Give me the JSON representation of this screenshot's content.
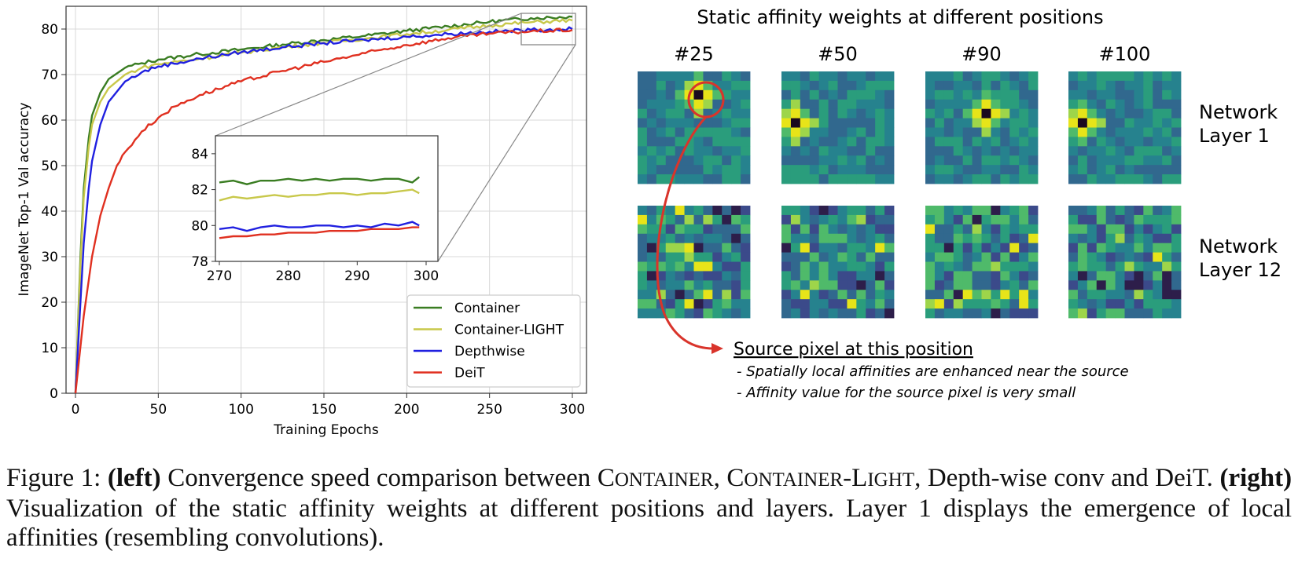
{
  "chart_data": [
    {
      "type": "line",
      "title": "",
      "xlabel": "Training Epochs",
      "ylabel": "ImageNet Top-1 Val accuracy",
      "xlim": [
        0,
        300
      ],
      "ylim": [
        0,
        85
      ],
      "xticks": [
        "0",
        "50",
        "100",
        "150",
        "200",
        "250",
        "300"
      ],
      "yticks": [
        "0",
        "10",
        "20",
        "30",
        "40",
        "50",
        "60",
        "70",
        "80"
      ],
      "grid": true,
      "legend_position": "bottom-right",
      "series": [
        {
          "name": "Container",
          "color": "#3a7d22",
          "x": [
            0,
            3,
            5,
            8,
            10,
            15,
            20,
            30,
            40,
            50,
            75,
            100,
            125,
            150,
            175,
            200,
            225,
            250,
            275,
            300
          ],
          "values": [
            0,
            30,
            45,
            56,
            61,
            66,
            69,
            71.5,
            72.5,
            73.3,
            74.5,
            75.5,
            76.6,
            77.6,
            78.5,
            79.6,
            80.6,
            81.6,
            82.4,
            82.7
          ]
        },
        {
          "name": "Container-LIGHT",
          "color": "#c8c84a",
          "x": [
            0,
            3,
            5,
            8,
            10,
            15,
            20,
            30,
            40,
            50,
            75,
            100,
            125,
            150,
            175,
            200,
            225,
            250,
            275,
            300
          ],
          "values": [
            0,
            28,
            43,
            54,
            59,
            64,
            67,
            70,
            71.5,
            72.3,
            73.5,
            74.8,
            76,
            77,
            77.9,
            78.9,
            79.8,
            80.8,
            81.5,
            81.9
          ]
        },
        {
          "name": "Depthwise",
          "color": "#2020e0",
          "x": [
            0,
            3,
            5,
            8,
            10,
            15,
            20,
            30,
            40,
            50,
            75,
            100,
            125,
            150,
            175,
            200,
            225,
            250,
            275,
            300
          ],
          "values": [
            0,
            20,
            33,
            45,
            51,
            59,
            64,
            68.5,
            70.5,
            71.8,
            73.5,
            74.9,
            76,
            76.9,
            77.6,
            78.3,
            78.9,
            79.4,
            79.8,
            80.0
          ]
        },
        {
          "name": "DeiT",
          "color": "#e03020",
          "x": [
            0,
            5,
            10,
            15,
            20,
            25,
            30,
            40,
            50,
            60,
            75,
            100,
            125,
            150,
            175,
            200,
            225,
            250,
            275,
            300
          ],
          "values": [
            0,
            17,
            30,
            39,
            45,
            50,
            53,
            57.5,
            60.5,
            63,
            65.5,
            68.5,
            70.8,
            72.8,
            74.7,
            76.5,
            78,
            79,
            79.5,
            79.8
          ]
        }
      ]
    },
    {
      "type": "line",
      "title": "",
      "xlim": [
        270,
        300
      ],
      "ylim": [
        78,
        85
      ],
      "xticks": [
        "270",
        "280",
        "290",
        "300"
      ],
      "yticks": [
        "78",
        "80",
        "82",
        "84"
      ],
      "series": [
        {
          "name": "Container",
          "color": "#3a7d22",
          "x": [
            270,
            272,
            274,
            276,
            278,
            280,
            282,
            284,
            286,
            288,
            290,
            292,
            294,
            296,
            298,
            299
          ],
          "values": [
            82.4,
            82.5,
            82.3,
            82.5,
            82.5,
            82.6,
            82.5,
            82.6,
            82.5,
            82.6,
            82.6,
            82.5,
            82.6,
            82.6,
            82.4,
            82.7
          ]
        },
        {
          "name": "Container-LIGHT",
          "color": "#c8c84a",
          "x": [
            270,
            272,
            274,
            276,
            278,
            280,
            282,
            284,
            286,
            288,
            290,
            292,
            294,
            296,
            298,
            299
          ],
          "values": [
            81.4,
            81.6,
            81.5,
            81.6,
            81.7,
            81.6,
            81.7,
            81.7,
            81.8,
            81.8,
            81.7,
            81.8,
            81.8,
            81.9,
            82.0,
            81.8
          ]
        },
        {
          "name": "Depthwise",
          "color": "#2020e0",
          "x": [
            270,
            272,
            274,
            276,
            278,
            280,
            282,
            284,
            286,
            288,
            290,
            292,
            294,
            296,
            298,
            299
          ],
          "values": [
            79.8,
            79.9,
            79.7,
            79.9,
            80.0,
            79.9,
            79.9,
            80.0,
            80.0,
            79.9,
            80.0,
            79.9,
            80.1,
            80.0,
            80.2,
            80.0
          ]
        },
        {
          "name": "DeiT",
          "color": "#e03020",
          "x": [
            270,
            272,
            274,
            276,
            278,
            280,
            282,
            284,
            286,
            288,
            290,
            292,
            294,
            296,
            298,
            299
          ],
          "values": [
            79.3,
            79.4,
            79.4,
            79.5,
            79.5,
            79.6,
            79.6,
            79.6,
            79.7,
            79.7,
            79.7,
            79.8,
            79.8,
            79.8,
            79.9,
            79.9
          ]
        }
      ]
    }
  ],
  "affinity": {
    "title": "Static affinity weights at different positions",
    "positions": [
      "#25",
      "#50",
      "#90",
      "#100"
    ],
    "row_labels": [
      [
        "Network",
        "Layer 1"
      ],
      [
        "Network",
        "Layer 12"
      ]
    ],
    "annotation_title": "Source pixel at this position",
    "annotation_lines": [
      "- Spatially local affinities are enhanced near the source",
      "- Affinity value for the source  pixel is very small"
    ],
    "palette": [
      "#2d1e4a",
      "#3b4a8a",
      "#31688e",
      "#26828e",
      "#2a9d7c",
      "#4fba6a",
      "#9ed54a",
      "#e7e419"
    ],
    "highlight_color": "#d9342b"
  },
  "caption": {
    "figure_label": "Figure 1:",
    "left_label": "(left)",
    "text1": "Convergence speed comparison between",
    "c1": "C",
    "c1_rest": "ONTAINER",
    "c2": "C",
    "c2_rest": "ONTAINER",
    "c2_dash": "-",
    "c2b": "L",
    "c2b_rest": "IGHT",
    "text2": ", Depth-wise conv and DeiT.",
    "right_label": "(right)",
    "text3": "Visualization of the static affinity weights at different positions and layers. Layer 1 displays the emergence of local affinities (resembling convolutions)."
  }
}
